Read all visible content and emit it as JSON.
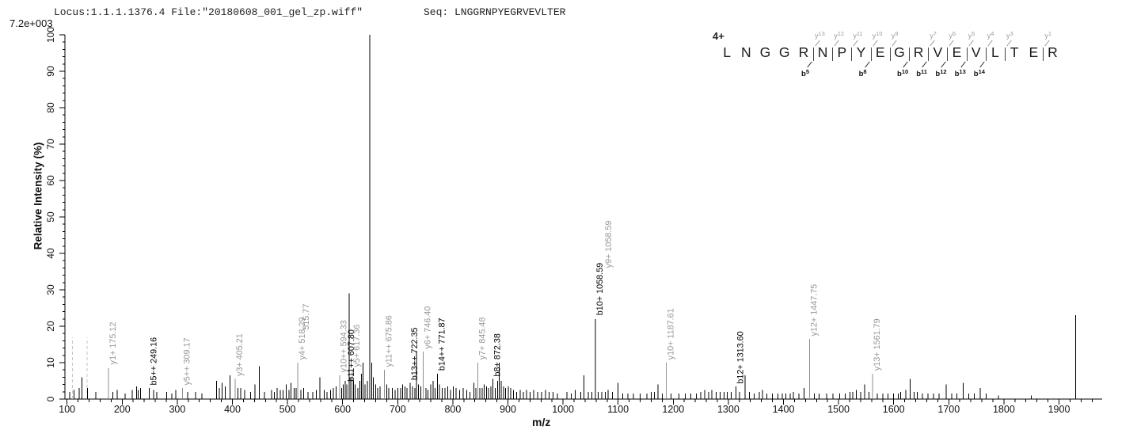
{
  "header": {
    "locus_file": "Locus:1.1.1.1376.4 File:\"20180608_001_gel_zp.wiff\"",
    "seq": "Seq: LNGGRNPYEGRVEVLTER",
    "scale_note": "7.2e+003"
  },
  "axes": {
    "y_title": "Relative  Intensity (%)",
    "x_title": "m/z",
    "y_ticks": [
      0,
      10,
      20,
      30,
      40,
      50,
      60,
      70,
      80,
      90,
      100
    ],
    "y_minor_step": 2,
    "x_ticks": [
      100,
      200,
      300,
      400,
      500,
      600,
      700,
      800,
      900,
      1000,
      1100,
      1200,
      1300,
      1400,
      1500,
      1600,
      1700,
      1800,
      1900
    ],
    "x_minor_step": 20,
    "x_min": 100,
    "x_max": 1960
  },
  "sequence_diagram": {
    "charge": "4+",
    "residues": [
      "L",
      "N",
      "G",
      "G",
      "R",
      "N",
      "P",
      "Y",
      "E",
      "G",
      "R",
      "V",
      "E",
      "V",
      "L",
      "T",
      "E",
      "R"
    ],
    "y_ions": [
      {
        "ion": "y",
        "num": "13",
        "gap": 5
      },
      {
        "ion": "y",
        "num": "12",
        "gap": 6
      },
      {
        "ion": "y",
        "num": "11",
        "gap": 7
      },
      {
        "ion": "y",
        "num": "10",
        "gap": 8
      },
      {
        "ion": "y",
        "num": "9",
        "gap": 9
      },
      {
        "ion": "y",
        "num": "7",
        "gap": 11
      },
      {
        "ion": "y",
        "num": "6",
        "gap": 12
      },
      {
        "ion": "y",
        "num": "5",
        "gap": 13
      },
      {
        "ion": "y",
        "num": "4",
        "gap": 14
      },
      {
        "ion": "y",
        "num": "3",
        "gap": 15
      },
      {
        "ion": "y",
        "num": "1",
        "gap": 17
      }
    ],
    "b_ions": [
      {
        "ion": "b",
        "num": "5",
        "gap": 5
      },
      {
        "ion": "b",
        "num": "8",
        "gap": 8
      },
      {
        "ion": "b",
        "num": "10",
        "gap": 10
      },
      {
        "ion": "b",
        "num": "11",
        "gap": 11
      },
      {
        "ion": "b",
        "num": "12",
        "gap": 12
      },
      {
        "ion": "b",
        "num": "13",
        "gap": 13
      },
      {
        "ion": "b",
        "num": "14",
        "gap": 14
      }
    ]
  },
  "chart_data": {
    "type": "bar",
    "subtype": "mass-spectrum",
    "xlabel": "m/z",
    "ylabel": "Relative  Intensity (%)",
    "xlim": [
      96,
      1975
    ],
    "ylim": [
      0,
      100
    ],
    "intensity_scale": "7.2e+003",
    "colors": {
      "peak_black": "#000000",
      "peak_gray": "#8e8e8e",
      "label_gray": "#979797",
      "label_black": "#000000",
      "dashed": "#c4c4c4"
    },
    "peaks_format": "[mz, intensity_pct, style('g'=gray,'d'=dashed-gray,''=black)]",
    "peaks": [
      [
        105,
        2,
        ""
      ],
      [
        110,
        17,
        "d"
      ],
      [
        113,
        2.5,
        ""
      ],
      [
        122,
        3,
        ""
      ],
      [
        127,
        6,
        ""
      ],
      [
        136,
        17,
        "d"
      ],
      [
        137,
        3,
        ""
      ],
      [
        152,
        2,
        ""
      ],
      [
        175.12,
        8.5,
        "g"
      ],
      [
        183,
        2,
        ""
      ],
      [
        191,
        2.5,
        ""
      ],
      [
        205,
        1.5,
        ""
      ],
      [
        218,
        2.5,
        ""
      ],
      [
        226,
        3.5,
        ""
      ],
      [
        229,
        2.5,
        ""
      ],
      [
        233,
        3,
        ""
      ],
      [
        249.16,
        3,
        ""
      ],
      [
        257,
        2.5,
        ""
      ],
      [
        263,
        2,
        ""
      ],
      [
        281,
        2,
        ""
      ],
      [
        290,
        1.5,
        ""
      ],
      [
        297,
        2.5,
        ""
      ],
      [
        309.17,
        3,
        "g"
      ],
      [
        319,
        2,
        ""
      ],
      [
        333,
        2,
        ""
      ],
      [
        345,
        1.5,
        ""
      ],
      [
        371,
        5,
        ""
      ],
      [
        376,
        3,
        ""
      ],
      [
        381,
        4.5,
        ""
      ],
      [
        387,
        3.5,
        ""
      ],
      [
        396,
        6.5,
        ""
      ],
      [
        405.21,
        5.5,
        "g"
      ],
      [
        410,
        3,
        ""
      ],
      [
        415,
        3,
        ""
      ],
      [
        422,
        2.5,
        ""
      ],
      [
        433,
        2,
        ""
      ],
      [
        441,
        4,
        ""
      ],
      [
        449,
        9,
        ""
      ],
      [
        458,
        2,
        ""
      ],
      [
        471,
        2.5,
        ""
      ],
      [
        476,
        2,
        ""
      ],
      [
        481,
        3,
        ""
      ],
      [
        487,
        2.5,
        ""
      ],
      [
        492,
        2.5,
        ""
      ],
      [
        498,
        4,
        ""
      ],
      [
        503,
        2.5,
        ""
      ],
      [
        506,
        4.5,
        ""
      ],
      [
        512,
        3,
        ""
      ],
      [
        515.8,
        3,
        ""
      ],
      [
        518.29,
        10,
        "g"
      ],
      [
        524,
        2.5,
        ""
      ],
      [
        529,
        3,
        ""
      ],
      [
        537,
        2,
        ""
      ],
      [
        546,
        2,
        ""
      ],
      [
        552,
        2.5,
        ""
      ],
      [
        559,
        6,
        ""
      ],
      [
        567,
        2.5,
        ""
      ],
      [
        572,
        2,
        ""
      ],
      [
        578,
        2.5,
        ""
      ],
      [
        583,
        3,
        ""
      ],
      [
        588,
        3.5,
        ""
      ],
      [
        594.33,
        6.5,
        "g"
      ],
      [
        598,
        3,
        ""
      ],
      [
        601,
        4,
        ""
      ],
      [
        605,
        5,
        ""
      ],
      [
        607.8,
        4,
        ""
      ],
      [
        612,
        29,
        ""
      ],
      [
        615,
        6,
        ""
      ],
      [
        617.36,
        8,
        "g"
      ],
      [
        620,
        5,
        ""
      ],
      [
        623,
        4,
        ""
      ],
      [
        628,
        3,
        ""
      ],
      [
        631,
        5,
        ""
      ],
      [
        634,
        7,
        ""
      ],
      [
        637,
        10,
        ""
      ],
      [
        641,
        4,
        ""
      ],
      [
        645,
        5,
        ""
      ],
      [
        649.6,
        100,
        ""
      ],
      [
        653,
        10,
        ""
      ],
      [
        656,
        6,
        ""
      ],
      [
        660,
        4,
        ""
      ],
      [
        664,
        3,
        ""
      ],
      [
        668,
        3.5,
        ""
      ],
      [
        675.86,
        8,
        "g"
      ],
      [
        680,
        4,
        ""
      ],
      [
        684,
        3,
        ""
      ],
      [
        690,
        3,
        ""
      ],
      [
        695,
        2.5,
        ""
      ],
      [
        700,
        3,
        ""
      ],
      [
        705,
        3,
        ""
      ],
      [
        709,
        4,
        ""
      ],
      [
        713,
        3.5,
        ""
      ],
      [
        717,
        3,
        ""
      ],
      [
        722.35,
        4.5,
        ""
      ],
      [
        727,
        3.5,
        ""
      ],
      [
        731,
        3,
        ""
      ],
      [
        734,
        13,
        ""
      ],
      [
        738,
        4,
        ""
      ],
      [
        742,
        3.5,
        ""
      ],
      [
        746.4,
        13,
        "g"
      ],
      [
        751,
        3,
        ""
      ],
      [
        755,
        2.5,
        ""
      ],
      [
        760,
        4,
        ""
      ],
      [
        764,
        5,
        ""
      ],
      [
        768,
        3,
        ""
      ],
      [
        771.87,
        7,
        ""
      ],
      [
        776,
        4,
        ""
      ],
      [
        781,
        3,
        ""
      ],
      [
        786,
        3,
        ""
      ],
      [
        791,
        3.5,
        ""
      ],
      [
        796,
        2.5,
        ""
      ],
      [
        801,
        3.5,
        ""
      ],
      [
        806,
        3,
        ""
      ],
      [
        812,
        2.5,
        ""
      ],
      [
        819,
        3,
        ""
      ],
      [
        825,
        2.5,
        ""
      ],
      [
        831,
        2,
        ""
      ],
      [
        838,
        4.5,
        ""
      ],
      [
        842,
        3,
        ""
      ],
      [
        845.48,
        10,
        "g"
      ],
      [
        849,
        3,
        ""
      ],
      [
        853,
        3,
        ""
      ],
      [
        857,
        4,
        ""
      ],
      [
        861,
        3.5,
        ""
      ],
      [
        865,
        3,
        ""
      ],
      [
        869,
        3.5,
        ""
      ],
      [
        872.38,
        5.5,
        ""
      ],
      [
        877,
        3,
        ""
      ],
      [
        881,
        5,
        ""
      ],
      [
        884,
        10,
        ""
      ],
      [
        888,
        5,
        ""
      ],
      [
        892,
        3.5,
        ""
      ],
      [
        896,
        3,
        ""
      ],
      [
        901,
        3.5,
        ""
      ],
      [
        905,
        3,
        ""
      ],
      [
        910,
        2.5,
        ""
      ],
      [
        916,
        2,
        ""
      ],
      [
        922,
        2.5,
        ""
      ],
      [
        928,
        2,
        ""
      ],
      [
        934,
        2.5,
        ""
      ],
      [
        940,
        2,
        ""
      ],
      [
        947,
        2.5,
        ""
      ],
      [
        954,
        2,
        ""
      ],
      [
        961,
        2,
        ""
      ],
      [
        968,
        2.5,
        ""
      ],
      [
        975,
        2,
        ""
      ],
      [
        982,
        2,
        ""
      ],
      [
        990,
        1.5,
        ""
      ],
      [
        1007,
        2,
        ""
      ],
      [
        1015,
        1.5,
        ""
      ],
      [
        1022,
        2.5,
        ""
      ],
      [
        1032,
        2,
        ""
      ],
      [
        1038,
        6.5,
        ""
      ],
      [
        1046,
        2,
        ""
      ],
      [
        1052,
        2,
        ""
      ],
      [
        1058.59,
        22,
        ""
      ],
      [
        1064,
        2,
        ""
      ],
      [
        1070,
        2,
        ""
      ],
      [
        1077,
        2,
        ""
      ],
      [
        1082,
        2.5,
        ""
      ],
      [
        1090,
        2,
        ""
      ],
      [
        1100,
        4.5,
        ""
      ],
      [
        1108,
        1.5,
        ""
      ],
      [
        1118,
        1.5,
        ""
      ],
      [
        1128,
        1.5,
        ""
      ],
      [
        1140,
        1.5,
        ""
      ],
      [
        1152,
        1.5,
        ""
      ],
      [
        1160,
        2,
        ""
      ],
      [
        1166,
        2,
        ""
      ],
      [
        1172,
        4,
        ""
      ],
      [
        1180,
        1.5,
        ""
      ],
      [
        1187.61,
        10,
        "g"
      ],
      [
        1196,
        1.5,
        ""
      ],
      [
        1210,
        1.5,
        ""
      ],
      [
        1222,
        1.5,
        ""
      ],
      [
        1232,
        1.5,
        ""
      ],
      [
        1242,
        1.5,
        ""
      ],
      [
        1250,
        2,
        ""
      ],
      [
        1257,
        2.5,
        ""
      ],
      [
        1264,
        2,
        ""
      ],
      [
        1270,
        2.5,
        ""
      ],
      [
        1278,
        2,
        ""
      ],
      [
        1285,
        2,
        ""
      ],
      [
        1292,
        2,
        ""
      ],
      [
        1298,
        2,
        ""
      ],
      [
        1305,
        2,
        ""
      ],
      [
        1313.6,
        3.5,
        ""
      ],
      [
        1320,
        2,
        ""
      ],
      [
        1330,
        6.5,
        ""
      ],
      [
        1338,
        2,
        ""
      ],
      [
        1347,
        1.5,
        ""
      ],
      [
        1356,
        2,
        ""
      ],
      [
        1362,
        2.5,
        ""
      ],
      [
        1370,
        1.5,
        ""
      ],
      [
        1380,
        1.5,
        ""
      ],
      [
        1390,
        1.5,
        ""
      ],
      [
        1398,
        1.5,
        ""
      ],
      [
        1404,
        1.5,
        ""
      ],
      [
        1412,
        1.5,
        ""
      ],
      [
        1418,
        2,
        ""
      ],
      [
        1428,
        1.5,
        ""
      ],
      [
        1437,
        3,
        ""
      ],
      [
        1447.75,
        16.5,
        "g"
      ],
      [
        1456,
        1.5,
        ""
      ],
      [
        1465,
        1.5,
        ""
      ],
      [
        1478,
        1.5,
        ""
      ],
      [
        1490,
        1.5,
        ""
      ],
      [
        1502,
        1.5,
        ""
      ],
      [
        1512,
        1.5,
        ""
      ],
      [
        1521,
        2,
        ""
      ],
      [
        1526,
        2,
        ""
      ],
      [
        1532,
        2.5,
        ""
      ],
      [
        1540,
        2,
        ""
      ],
      [
        1547,
        4,
        ""
      ],
      [
        1555,
        2,
        ""
      ],
      [
        1561.79,
        7,
        "g"
      ],
      [
        1570,
        1.5,
        ""
      ],
      [
        1580,
        1.5,
        ""
      ],
      [
        1590,
        1.5,
        ""
      ],
      [
        1600,
        1.5,
        ""
      ],
      [
        1608,
        1.5,
        ""
      ],
      [
        1613,
        2,
        ""
      ],
      [
        1622,
        2.5,
        ""
      ],
      [
        1630,
        5.5,
        ""
      ],
      [
        1637,
        2,
        ""
      ],
      [
        1643,
        2,
        ""
      ],
      [
        1652,
        1.5,
        ""
      ],
      [
        1662,
        1.5,
        ""
      ],
      [
        1672,
        1.5,
        ""
      ],
      [
        1682,
        1.5,
        ""
      ],
      [
        1695,
        4,
        ""
      ],
      [
        1705,
        1.5,
        ""
      ],
      [
        1715,
        1.5,
        ""
      ],
      [
        1726,
        4.5,
        ""
      ],
      [
        1736,
        1.5,
        ""
      ],
      [
        1746,
        1.5,
        ""
      ],
      [
        1757,
        3,
        ""
      ],
      [
        1768,
        1.5,
        ""
      ],
      [
        1790,
        1,
        ""
      ],
      [
        1850,
        1,
        ""
      ],
      [
        1930,
        23,
        ""
      ]
    ],
    "annotations": [
      {
        "text": "y1+ 175.12",
        "mz": 175.12,
        "color": "gray",
        "base": 9.5,
        "dx": 0
      },
      {
        "text": "b5++ 249.16",
        "mz": 249.16,
        "color": "black",
        "base": 3.8,
        "dx": 0
      },
      {
        "text": "y5++ 309.17",
        "mz": 309.17,
        "color": "gray",
        "base": 3.8,
        "dx": 0
      },
      {
        "text": "y3+ 405.21",
        "mz": 405.21,
        "color": "gray",
        "base": 6.3,
        "dx": 0
      },
      {
        "text": "y4+ 518.29",
        "mz": 518.29,
        "color": "gray",
        "base": 10.8,
        "dx": 0
      },
      {
        "text": "515.77",
        "mz": 518.29,
        "color": "gray",
        "base": 19,
        "dx": 5
      },
      {
        "text": "y10++ 594.33",
        "mz": 594.33,
        "color": "gray",
        "base": 7.3,
        "dx": 0
      },
      {
        "text": "b11++ 607.80",
        "mz": 607.8,
        "color": "black",
        "base": 4.8,
        "dx": 0
      },
      {
        "text": "y5+ 617.36",
        "mz": 617.36,
        "color": "gray",
        "base": 8.8,
        "dx": 0
      },
      {
        "text": "y11++ 675.86",
        "mz": 675.86,
        "color": "gray",
        "base": 8.8,
        "dx": 0
      },
      {
        "text": "b13++ 722.35",
        "mz": 722.35,
        "color": "black",
        "base": 5.2,
        "dx": 0
      },
      {
        "text": "y6+ 746.40",
        "mz": 746.4,
        "color": "gray",
        "base": 13.8,
        "dx": 0
      },
      {
        "text": "b14++ 771.87",
        "mz": 771.87,
        "color": "black",
        "base": 7.8,
        "dx": 0
      },
      {
        "text": "y7+ 845.48",
        "mz": 845.48,
        "color": "gray",
        "base": 10.8,
        "dx": 0
      },
      {
        "text": "b8+ 872.38",
        "mz": 872.38,
        "color": "black",
        "base": 6.2,
        "dx": 0
      },
      {
        "text": "b10+ 1058.59",
        "mz": 1058.59,
        "color": "black",
        "base": 23,
        "dx": 0
      },
      {
        "text": "y9+ 1058.59",
        "mz": 1058.59,
        "color": "gray",
        "base": 36,
        "dx": 11
      },
      {
        "text": "y10+ 1187.61",
        "mz": 1187.61,
        "color": "gray",
        "base": 10.8,
        "dx": 0
      },
      {
        "text": "b12+ 1313.60",
        "mz": 1313.6,
        "color": "black",
        "base": 4.2,
        "dx": 0
      },
      {
        "text": "y12+ 1447.75",
        "mz": 1447.75,
        "color": "gray",
        "base": 17.3,
        "dx": 0
      },
      {
        "text": "y13+ 1561.79",
        "mz": 1561.79,
        "color": "gray",
        "base": 7.8,
        "dx": 0
      }
    ]
  }
}
